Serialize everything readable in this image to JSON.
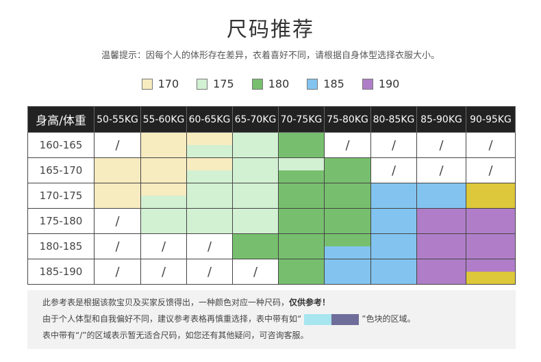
{
  "page": {
    "title": "尺码推荐",
    "subtitle": "温馨提示：因每个人的体形存在差异，衣着喜好不同，请根据自身体型选择衣服大小。"
  },
  "colors": {
    "170": "#f7ebc0",
    "175": "#d2f0d2",
    "180": "#77bf6e",
    "185": "#82c4ef",
    "190": "#b07ec8",
    "yellow": "#dcc83a",
    "empty": "#ffffff",
    "note_cyan": "#a8e6ef",
    "note_purple": "#6f6d9a"
  },
  "legend": [
    {
      "label": "170",
      "color": "#f7ebc0"
    },
    {
      "label": "175",
      "color": "#d2f0d2"
    },
    {
      "label": "180",
      "color": "#77bf6e"
    },
    {
      "label": "185",
      "color": "#82c4ef"
    },
    {
      "label": "190",
      "color": "#b07ec8"
    }
  ],
  "table": {
    "corner": "身高/体重",
    "columns": [
      "50-55KG",
      "55-60KG",
      "60-65KG",
      "65-70KG",
      "70-75KG",
      "75-80KG",
      "80-85KG",
      "85-90KG",
      "90-95KG"
    ],
    "rows": [
      {
        "label": "160-165",
        "cells": [
          [
            "/"
          ],
          [
            "170"
          ],
          [
            "170",
            "175"
          ],
          [
            "175"
          ],
          [
            "180"
          ],
          [
            "/"
          ],
          [
            "/"
          ],
          [
            "/"
          ],
          [
            "/"
          ]
        ]
      },
      {
        "label": "165-170",
        "cells": [
          [
            "170"
          ],
          [
            "170"
          ],
          [
            "170",
            "175"
          ],
          [
            "175"
          ],
          [
            "175",
            "180"
          ],
          [
            "180"
          ],
          [
            "/"
          ],
          [
            "/"
          ],
          [
            "/"
          ]
        ]
      },
      {
        "label": "170-175",
        "cells": [
          [
            "170"
          ],
          [
            "170",
            "175"
          ],
          [
            "175"
          ],
          [
            "175"
          ],
          [
            "180"
          ],
          [
            "180"
          ],
          [
            "185"
          ],
          [
            "185"
          ],
          [
            "yellow"
          ]
        ]
      },
      {
        "label": "175-180",
        "cells": [
          [
            "/"
          ],
          [
            "175"
          ],
          [
            "175"
          ],
          [
            "175"
          ],
          [
            "180"
          ],
          [
            "180"
          ],
          [
            "185"
          ],
          [
            "190"
          ],
          [
            "190"
          ]
        ]
      },
      {
        "label": "180-185",
        "cells": [
          [
            "/"
          ],
          [
            "/"
          ],
          [
            "/"
          ],
          [
            "180"
          ],
          [
            "180"
          ],
          [
            "180",
            "185"
          ],
          [
            "185"
          ],
          [
            "190"
          ],
          [
            "190"
          ]
        ]
      },
      {
        "label": "185-190",
        "cells": [
          [
            "/"
          ],
          [
            "/"
          ],
          [
            "/"
          ],
          [
            "/"
          ],
          [
            "180"
          ],
          [
            "185"
          ],
          [
            "185"
          ],
          [
            "190"
          ],
          [
            "190",
            "yellow"
          ]
        ]
      }
    ]
  },
  "notes": {
    "line1_text": "此参考表是根据该款宝贝及买家反馈得出，一种颜色对应一种尺码，",
    "line1_bold": "仅供参考！",
    "line2_before": "由于个人体型和自我偏好不同，建议参考表格再慎重选择，表中带有如“",
    "line2_after": "”色块的区域。",
    "line3": "表中带有“/”的区域表示暂无适合尺码，如您还有其他疑问，可咨询客服。"
  }
}
